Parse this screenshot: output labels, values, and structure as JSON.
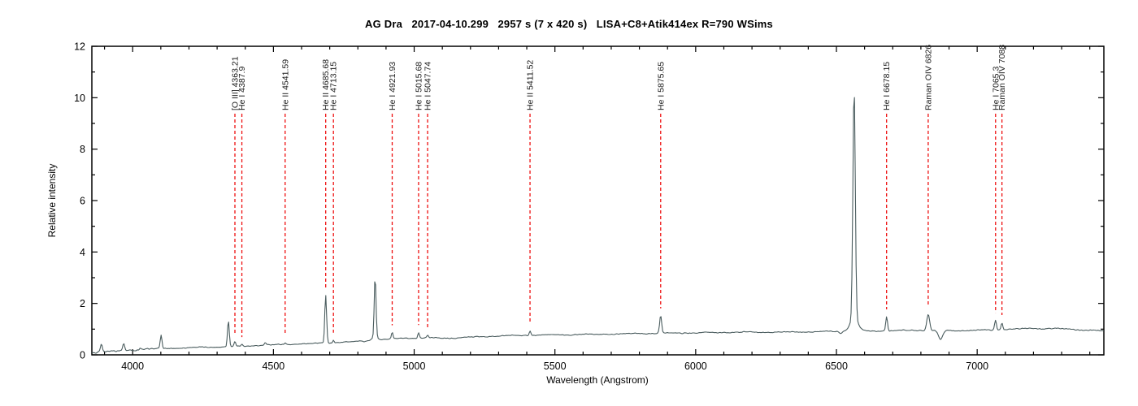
{
  "chart_data": {
    "type": "line",
    "title": "AG Dra   2017-04-10.299   2957 s (7 x 420 s)   LISA+C8+Atik414ex R=790 WSims",
    "xlabel": "Wavelength (Angstrom)",
    "ylabel": "Relative intensity",
    "xlim": [
      3855,
      7450
    ],
    "ylim": [
      0,
      12
    ],
    "x_major_ticks": [
      4000,
      4500,
      5000,
      5500,
      6000,
      6500,
      7000
    ],
    "x_minor_step": 100,
    "y_major_ticks": [
      0,
      2,
      4,
      6,
      8,
      10,
      12
    ],
    "y_minor_step": 1,
    "grid": false,
    "legend": false,
    "colors": {
      "spectrum_line": "#4a5c5e",
      "marker_line": "#ee1010",
      "axis": "#000000",
      "text": "#1a1a1a"
    },
    "line_markers": [
      {
        "label": "[O III] 4363.21",
        "wavelength": 4363.21
      },
      {
        "label": "He I 4387.9",
        "wavelength": 4387.9
      },
      {
        "label": "He II 4541.59",
        "wavelength": 4541.59
      },
      {
        "label": "He II 4685.68",
        "wavelength": 4685.68
      },
      {
        "label": "He I 4713.15",
        "wavelength": 4713.15
      },
      {
        "label": "He I 4921.93",
        "wavelength": 4921.93
      },
      {
        "label": "He I 5015.68",
        "wavelength": 5015.68
      },
      {
        "label": "He I 5047.74",
        "wavelength": 5047.74
      },
      {
        "label": "He II 5411.52",
        "wavelength": 5411.52
      },
      {
        "label": "He I 5875.65",
        "wavelength": 5875.65
      },
      {
        "label": "He I 6678.15",
        "wavelength": 6678.15
      },
      {
        "label": "Raman OIV 6826",
        "wavelength": 6826
      },
      {
        "label": "He I 7065.3",
        "wavelength": 7065.3
      },
      {
        "label": "Raman OIV 7088",
        "wavelength": 7088
      }
    ],
    "continuum_points": [
      [
        3855,
        0.1
      ],
      [
        3880,
        0.12
      ],
      [
        3905,
        0.14
      ],
      [
        3935,
        0.15
      ],
      [
        3965,
        0.17
      ],
      [
        4000,
        0.19
      ],
      [
        4050,
        0.22
      ],
      [
        4100,
        0.24
      ],
      [
        4180,
        0.27
      ],
      [
        4260,
        0.3
      ],
      [
        4340,
        0.32
      ],
      [
        4420,
        0.35
      ],
      [
        4500,
        0.39
      ],
      [
        4580,
        0.42
      ],
      [
        4660,
        0.45
      ],
      [
        4740,
        0.49
      ],
      [
        4820,
        0.53
      ],
      [
        4900,
        0.6
      ],
      [
        4980,
        0.65
      ],
      [
        5060,
        0.66
      ],
      [
        5140,
        0.65
      ],
      [
        5220,
        0.7
      ],
      [
        5300,
        0.73
      ],
      [
        5380,
        0.76
      ],
      [
        5460,
        0.77
      ],
      [
        5540,
        0.78
      ],
      [
        5620,
        0.8
      ],
      [
        5700,
        0.81
      ],
      [
        5780,
        0.83
      ],
      [
        5860,
        0.84
      ],
      [
        5940,
        0.85
      ],
      [
        6020,
        0.86
      ],
      [
        6100,
        0.87
      ],
      [
        6180,
        0.88
      ],
      [
        6260,
        0.88
      ],
      [
        6340,
        0.89
      ],
      [
        6420,
        0.9
      ],
      [
        6500,
        0.91
      ],
      [
        6580,
        0.92
      ],
      [
        6660,
        0.93
      ],
      [
        6740,
        0.95
      ],
      [
        6820,
        0.96
      ],
      [
        6900,
        0.94
      ],
      [
        6980,
        0.95
      ],
      [
        7060,
        0.97
      ],
      [
        7140,
        1.01
      ],
      [
        7220,
        1.03
      ],
      [
        7300,
        1.01
      ],
      [
        7380,
        0.97
      ],
      [
        7450,
        0.93
      ]
    ],
    "emission_peaks": [
      {
        "wavelength": 3889,
        "amplitude": 0.3,
        "sigma": 4.5
      },
      {
        "wavelength": 3968,
        "amplitude": 0.28,
        "sigma": 4.5
      },
      {
        "wavelength": 4026,
        "amplitude": 0.08,
        "sigma": 4
      },
      {
        "wavelength": 4101,
        "amplitude": 0.5,
        "sigma": 4.5
      },
      {
        "wavelength": 4340,
        "amplitude": 1.0,
        "sigma": 4.5
      },
      {
        "wavelength": 4363.2,
        "amplitude": 0.18,
        "sigma": 4
      },
      {
        "wavelength": 4387.9,
        "amplitude": 0.07,
        "sigma": 3.5
      },
      {
        "wavelength": 4471,
        "amplitude": 0.1,
        "sigma": 4
      },
      {
        "wavelength": 4541.6,
        "amplitude": 0.07,
        "sigma": 3.5
      },
      {
        "wavelength": 4685.7,
        "amplitude": 1.85,
        "sigma": 4.5
      },
      {
        "wavelength": 4713.2,
        "amplitude": 0.1,
        "sigma": 3.5
      },
      {
        "wavelength": 4861.3,
        "amplitude": 2.35,
        "sigma": 4.5
      },
      {
        "wavelength": 4861.3,
        "amplitude": 0.12,
        "sigma": 16
      },
      {
        "wavelength": 4921.9,
        "amplitude": 0.25,
        "sigma": 4
      },
      {
        "wavelength": 5015.7,
        "amplitude": 0.22,
        "sigma": 4
      },
      {
        "wavelength": 5047.7,
        "amplitude": 0.1,
        "sigma": 3.5
      },
      {
        "wavelength": 5411.5,
        "amplitude": 0.17,
        "sigma": 4
      },
      {
        "wavelength": 5875.7,
        "amplitude": 0.68,
        "sigma": 5
      },
      {
        "wavelength": 6562.8,
        "amplitude": 8.95,
        "sigma": 6
      },
      {
        "wavelength": 6562.8,
        "amplitude": 0.5,
        "sigma": 20
      },
      {
        "wavelength": 6678.2,
        "amplitude": 0.55,
        "sigma": 4.5
      },
      {
        "wavelength": 6826,
        "amplitude": 0.62,
        "sigma": 7
      },
      {
        "wavelength": 7065.3,
        "amplitude": 0.38,
        "sigma": 4.5
      },
      {
        "wavelength": 7088,
        "amplitude": 0.28,
        "sigma": 4.5
      }
    ],
    "absorption_features": [
      {
        "wavelength": 6870,
        "depth": 0.35,
        "sigma": 11
      },
      {
        "wavelength": 6515,
        "depth": 0.06,
        "sigma": 7
      },
      {
        "wavelength": 3870,
        "depth": 0.06,
        "sigma": 8
      }
    ],
    "noise": {
      "base_amplitude": 0.022,
      "blue_end_amplitude": 0.05,
      "blue_end_limit": 4060,
      "red_amplitude": 0.028,
      "red_limit": 6900
    }
  }
}
